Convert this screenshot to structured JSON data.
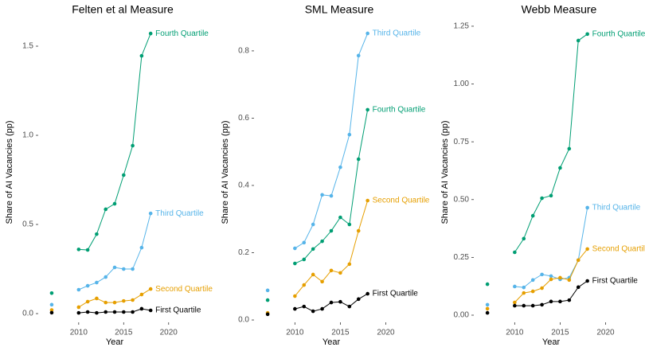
{
  "chart_data": [
    {
      "type": "line",
      "title": "Felten et al Measure",
      "x_label": "Year",
      "y_label": "Share of AI Vacancies (pp)",
      "x": [
        2007,
        2008,
        2009,
        2010,
        2011,
        2012,
        2013,
        2014,
        2015,
        2016,
        2017,
        2018
      ],
      "series": [
        {
          "name": "Fourth Quartile",
          "color": "#009E73",
          "values": [
            0.115,
            null,
            null,
            0.36,
            0.357,
            0.446,
            0.585,
            0.616,
            0.777,
            0.942,
            1.446,
            1.571
          ]
        },
        {
          "name": "Third Quartile",
          "color": "#56B4E9",
          "values": [
            0.05,
            null,
            null,
            0.134,
            0.156,
            0.174,
            0.205,
            0.259,
            0.25,
            0.25,
            0.37,
            0.562
          ]
        },
        {
          "name": "Second Quartile",
          "color": "#E69F00",
          "values": [
            0.02,
            null,
            null,
            0.036,
            0.067,
            0.085,
            0.062,
            0.062,
            0.071,
            0.076,
            0.107,
            0.138
          ]
        },
        {
          "name": "First Quartile",
          "color": "#000000",
          "values": [
            0.005,
            null,
            null,
            0.004,
            0.009,
            0.004,
            0.009,
            0.009,
            0.009,
            0.009,
            0.027,
            0.018
          ]
        }
      ],
      "xlim": [
        2005.5,
        2022.5
      ],
      "ylim": [
        -0.049,
        1.634
      ],
      "xticks": [
        2010,
        2015,
        2020
      ],
      "yticks": [
        {
          "value": 0,
          "label": "0.0"
        },
        0.5,
        {
          "value": 1,
          "label": "1.0"
        },
        1.5
      ]
    },
    {
      "type": "line",
      "title": "SML Measure",
      "x_label": "Year",
      "y_label": "Share of AI Vacancies (pp)",
      "x": [
        2007,
        2008,
        2009,
        2010,
        2011,
        2012,
        2013,
        2014,
        2015,
        2016,
        2017,
        2018
      ],
      "series": [
        {
          "name": "Third Quartile",
          "color": "#56B4E9",
          "values": [
            0.088,
            null,
            null,
            0.213,
            0.23,
            0.284,
            0.372,
            0.369,
            0.454,
            0.551,
            0.786,
            0.852
          ]
        },
        {
          "name": "Fourth Quartile",
          "color": "#009E73",
          "values": [
            0.059,
            null,
            null,
            0.168,
            0.18,
            0.211,
            0.234,
            0.265,
            0.305,
            0.284,
            0.478,
            0.625
          ]
        },
        {
          "name": "Second Quartile",
          "color": "#E69F00",
          "values": [
            0.021,
            null,
            null,
            0.071,
            0.104,
            0.135,
            0.114,
            0.147,
            0.14,
            0.166,
            0.265,
            0.355
          ]
        },
        {
          "name": "First Quartile",
          "color": "#000000",
          "values": [
            0.017,
            null,
            null,
            0.033,
            0.04,
            0.026,
            0.033,
            0.052,
            0.054,
            0.04,
            0.062,
            0.078
          ]
        }
      ],
      "xlim": [
        2005.5,
        2022.5
      ],
      "ylim": [
        -0.007,
        0.885
      ],
      "xticks": [
        2010,
        2015,
        2020
      ],
      "yticks": [
        {
          "value": 0,
          "label": "0.0"
        },
        0.2,
        0.4,
        0.6,
        0.8
      ]
    },
    {
      "type": "line",
      "title": "Webb Measure",
      "x_label": "Year",
      "y_label": "Share of AI Vacancies (pp)",
      "x": [
        2007,
        2008,
        2009,
        2010,
        2011,
        2012,
        2013,
        2014,
        2015,
        2016,
        2017,
        2018
      ],
      "series": [
        {
          "name": "Fourth Quartile",
          "color": "#009E73",
          "values": [
            0.134,
            null,
            null,
            0.272,
            0.331,
            0.43,
            0.506,
            0.517,
            0.637,
            0.72,
            1.188,
            1.216
          ]
        },
        {
          "name": "Third Quartile",
          "color": "#56B4E9",
          "values": [
            0.045,
            null,
            null,
            0.124,
            0.12,
            0.152,
            0.176,
            0.169,
            0.155,
            0.162,
            0.238,
            0.465
          ]
        },
        {
          "name": "Second Quartile",
          "color": "#E69F00",
          "values": [
            0.028,
            null,
            null,
            0.055,
            0.096,
            0.103,
            0.117,
            0.155,
            0.162,
            0.152,
            0.238,
            0.286
          ]
        },
        {
          "name": "First Quartile",
          "color": "#000000",
          "values": [
            0.01,
            null,
            null,
            0.041,
            0.041,
            0.041,
            0.045,
            0.059,
            0.059,
            0.065,
            0.121,
            0.148
          ]
        }
      ],
      "xlim": [
        2005.5,
        2022.5
      ],
      "ylim": [
        -0.031,
        1.267
      ],
      "xticks": [
        2010,
        2015,
        2020
      ],
      "yticks": [
        {
          "value": 0,
          "label": "0.00"
        },
        0.25,
        {
          "value": 0.5,
          "label": "0.50"
        },
        0.75,
        {
          "value": 1,
          "label": "1.00"
        },
        1.25
      ]
    }
  ]
}
